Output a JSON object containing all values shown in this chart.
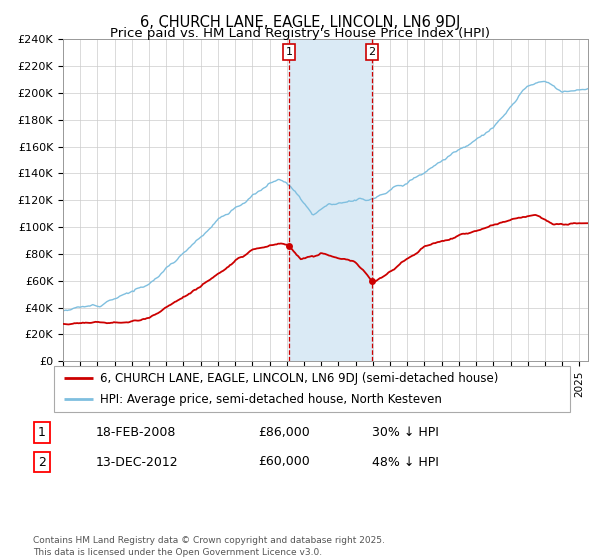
{
  "title": "6, CHURCH LANE, EAGLE, LINCOLN, LN6 9DJ",
  "subtitle": "Price paid vs. HM Land Registry's House Price Index (HPI)",
  "ylim": [
    0,
    240000
  ],
  "yticks": [
    0,
    20000,
    40000,
    60000,
    80000,
    100000,
    120000,
    140000,
    160000,
    180000,
    200000,
    220000,
    240000
  ],
  "ytick_labels": [
    "£0",
    "£20K",
    "£40K",
    "£60K",
    "£80K",
    "£100K",
    "£120K",
    "£140K",
    "£160K",
    "£180K",
    "£200K",
    "£220K",
    "£240K"
  ],
  "xlim_start": 1995.0,
  "xlim_end": 2025.5,
  "hpi_color": "#7fbfdf",
  "price_color": "#cc0000",
  "shade_color": "#daeaf5",
  "vline_color": "#cc0000",
  "marker1_date": 2008.12,
  "marker2_date": 2012.95,
  "marker1_price": 86000,
  "marker2_price": 60000,
  "legend_label_price": "6, CHURCH LANE, EAGLE, LINCOLN, LN6 9DJ (semi-detached house)",
  "legend_label_hpi": "HPI: Average price, semi-detached house, North Kesteven",
  "note1_label": "1",
  "note1_date": "18-FEB-2008",
  "note1_price": "£86,000",
  "note1_text": "30% ↓ HPI",
  "note2_label": "2",
  "note2_date": "13-DEC-2012",
  "note2_price": "£60,000",
  "note2_text": "48% ↓ HPI",
  "footer": "Contains HM Land Registry data © Crown copyright and database right 2025.\nThis data is licensed under the Open Government Licence v3.0.",
  "title_fontsize": 10.5,
  "subtitle_fontsize": 9.5,
  "axis_fontsize": 8,
  "legend_fontsize": 8.5,
  "notes_fontsize": 9
}
